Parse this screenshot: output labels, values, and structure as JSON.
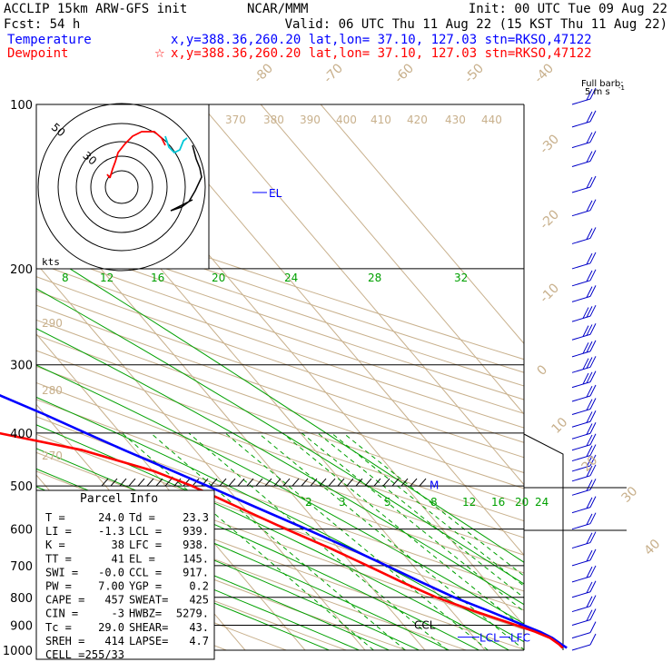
{
  "header": {
    "line1_left": "ACCLIP 15km ARW-GFS init",
    "line1_center": "NCAR/MMM",
    "line1_right": "Init: 00 UTC Tue 09 Aug 22",
    "line2_left": "Fcst:   54 h",
    "line2_right": "Valid: 06 UTC Thu 11 Aug 22 (15 KST Thu 11 Aug 22)",
    "temp_label": "Temperature",
    "temp_info": "x,y=388.36,260.20   lat,lon= 37.10, 127.03  stn=RKSO,47122",
    "dew_label": "Dewpoint",
    "dew_info": "x,y=388.36,260.20   lat,lon= 37.10, 127.03  stn=RKSO,47122",
    "barb_key1": "Full barb:",
    "barb_key2": "5 m s",
    "barb_key_sup": "-1"
  },
  "colors": {
    "temperature": "#0000ff",
    "dewpoint": "#ff0000",
    "isotherm": "#c8b08c",
    "mixing_ratio": "#00a000",
    "isobar": "#000000",
    "hodo_cyan": "#00c8d8"
  },
  "chart_data": {
    "type": "line",
    "title": "Skew-T log-P sounding",
    "pressure_ticks": [
      "100",
      "200",
      "300",
      "400",
      "500",
      "600",
      "700",
      "800",
      "900",
      "1000"
    ],
    "pressure_values": [
      100,
      200,
      300,
      400,
      500,
      600,
      700,
      800,
      900,
      1000
    ],
    "dry_adiabat_labels": [
      "-80",
      "-70",
      "-60",
      "-50",
      "-40",
      "-30",
      "-20",
      "-10",
      "0",
      "10",
      "20",
      "30",
      "40"
    ],
    "theta_e_labels": [
      "370",
      "380",
      "390",
      "400",
      "410",
      "420",
      "430",
      "440"
    ],
    "theta_e_left_labels": [
      "290",
      "280",
      "270"
    ],
    "mixing_ratio_upper_labels": [
      "8",
      "12",
      "16",
      "20",
      "24",
      "28",
      "32"
    ],
    "mixing_ratio_lower_labels": [
      "2",
      "3",
      "5",
      "8",
      "12",
      "16",
      "20",
      "24"
    ],
    "levels": {
      "el": "EL",
      "ccl": "CCL",
      "lcl": "LCL",
      "lfc": "LFC",
      "m": "M"
    },
    "series": [
      {
        "name": "Temperature",
        "pressure": [
          990,
          975,
          950,
          925,
          900,
          875,
          850,
          800,
          750,
          700,
          650,
          600,
          550,
          500,
          470,
          430,
          400,
          370,
          330,
          300,
          270,
          240,
          210,
          200,
          180,
          160,
          145,
          140,
          130,
          125,
          115,
          100
        ],
        "temperature": [
          24.0,
          23.6,
          23.0,
          21.8,
          20.0,
          18.2,
          16.4,
          12.4,
          9.0,
          5.6,
          1.8,
          -2.6,
          -7.6,
          -13.0,
          -16.6,
          -21.8,
          -25.8,
          -30.0,
          -36.8,
          -43.0,
          -48.6,
          -52.2,
          -57.0,
          -58.8,
          -62.6,
          -68.2,
          -71.4,
          -70.2,
          -68.0,
          -67.0,
          -66.8,
          -66.0
        ]
      },
      {
        "name": "Dewpoint",
        "pressure": [
          990,
          975,
          950,
          925,
          900,
          875,
          850,
          800,
          750,
          700,
          650,
          600,
          550,
          500,
          470,
          430,
          400,
          370,
          340,
          320,
          300,
          270,
          240,
          210,
          200,
          180,
          160,
          145,
          140,
          130,
          120,
          100
        ],
        "temperature": [
          23.3,
          23.2,
          22.6,
          21.0,
          18.8,
          16.4,
          14.0,
          9.4,
          5.8,
          2.4,
          -1.4,
          -6.0,
          -10.6,
          -15.6,
          -19.8,
          -28.8,
          -40.4,
          -45.6,
          -50.4,
          -52.6,
          -56.4,
          -62.0,
          -68.6,
          -74.2,
          -76.6,
          -80.0,
          -84.6,
          -87.2,
          -86.4,
          -84.0,
          -82.8,
          -82.0
        ]
      }
    ],
    "parcel_info": {
      "title": "Parcel Info",
      "rows": [
        [
          "T   =",
          "24.0",
          "Td =",
          "23.3"
        ],
        [
          "LI  =",
          "-1.3",
          "LCL =",
          "939."
        ],
        [
          "K   =",
          "38",
          "LFC =",
          "938."
        ],
        [
          "TT  =",
          "41",
          "EL  =",
          "145."
        ],
        [
          "SWI =",
          "-0.0",
          "CCL =",
          "917."
        ],
        [
          "PW  =",
          "7.00",
          "YGP =",
          "0.2"
        ],
        [
          "CAPE =",
          "457",
          "SWEAT=",
          "425"
        ],
        [
          "CIN  =",
          "-3",
          "HWBZ=",
          "5279."
        ],
        [
          "Tc  =",
          "29.0",
          "SHEAR=",
          "43."
        ],
        [
          "SREH =",
          "414",
          "LAPSE=",
          "4.7"
        ],
        [
          "CELL =",
          "255/33",
          "",
          ""
        ]
      ]
    },
    "hodograph": {
      "ring_labels": [
        "50",
        "30"
      ],
      "unit_label": "kts"
    },
    "wind_barbs": {
      "pressure": [
        100,
        110,
        120,
        130,
        145,
        160,
        180,
        200,
        215,
        230,
        250,
        270,
        290,
        310,
        330,
        350,
        370,
        390,
        410,
        430,
        450,
        470,
        490,
        520,
        560,
        600,
        650,
        700,
        750,
        800,
        850,
        900,
        950,
        1000
      ],
      "full_barbs": [
        2,
        2,
        2,
        2,
        2,
        2,
        2,
        2,
        2,
        2,
        3,
        3,
        3,
        3,
        3,
        2,
        2,
        2,
        2,
        2,
        2,
        2,
        2,
        2,
        2,
        2,
        2,
        2,
        2,
        2,
        2,
        2,
        1,
        1
      ]
    }
  }
}
